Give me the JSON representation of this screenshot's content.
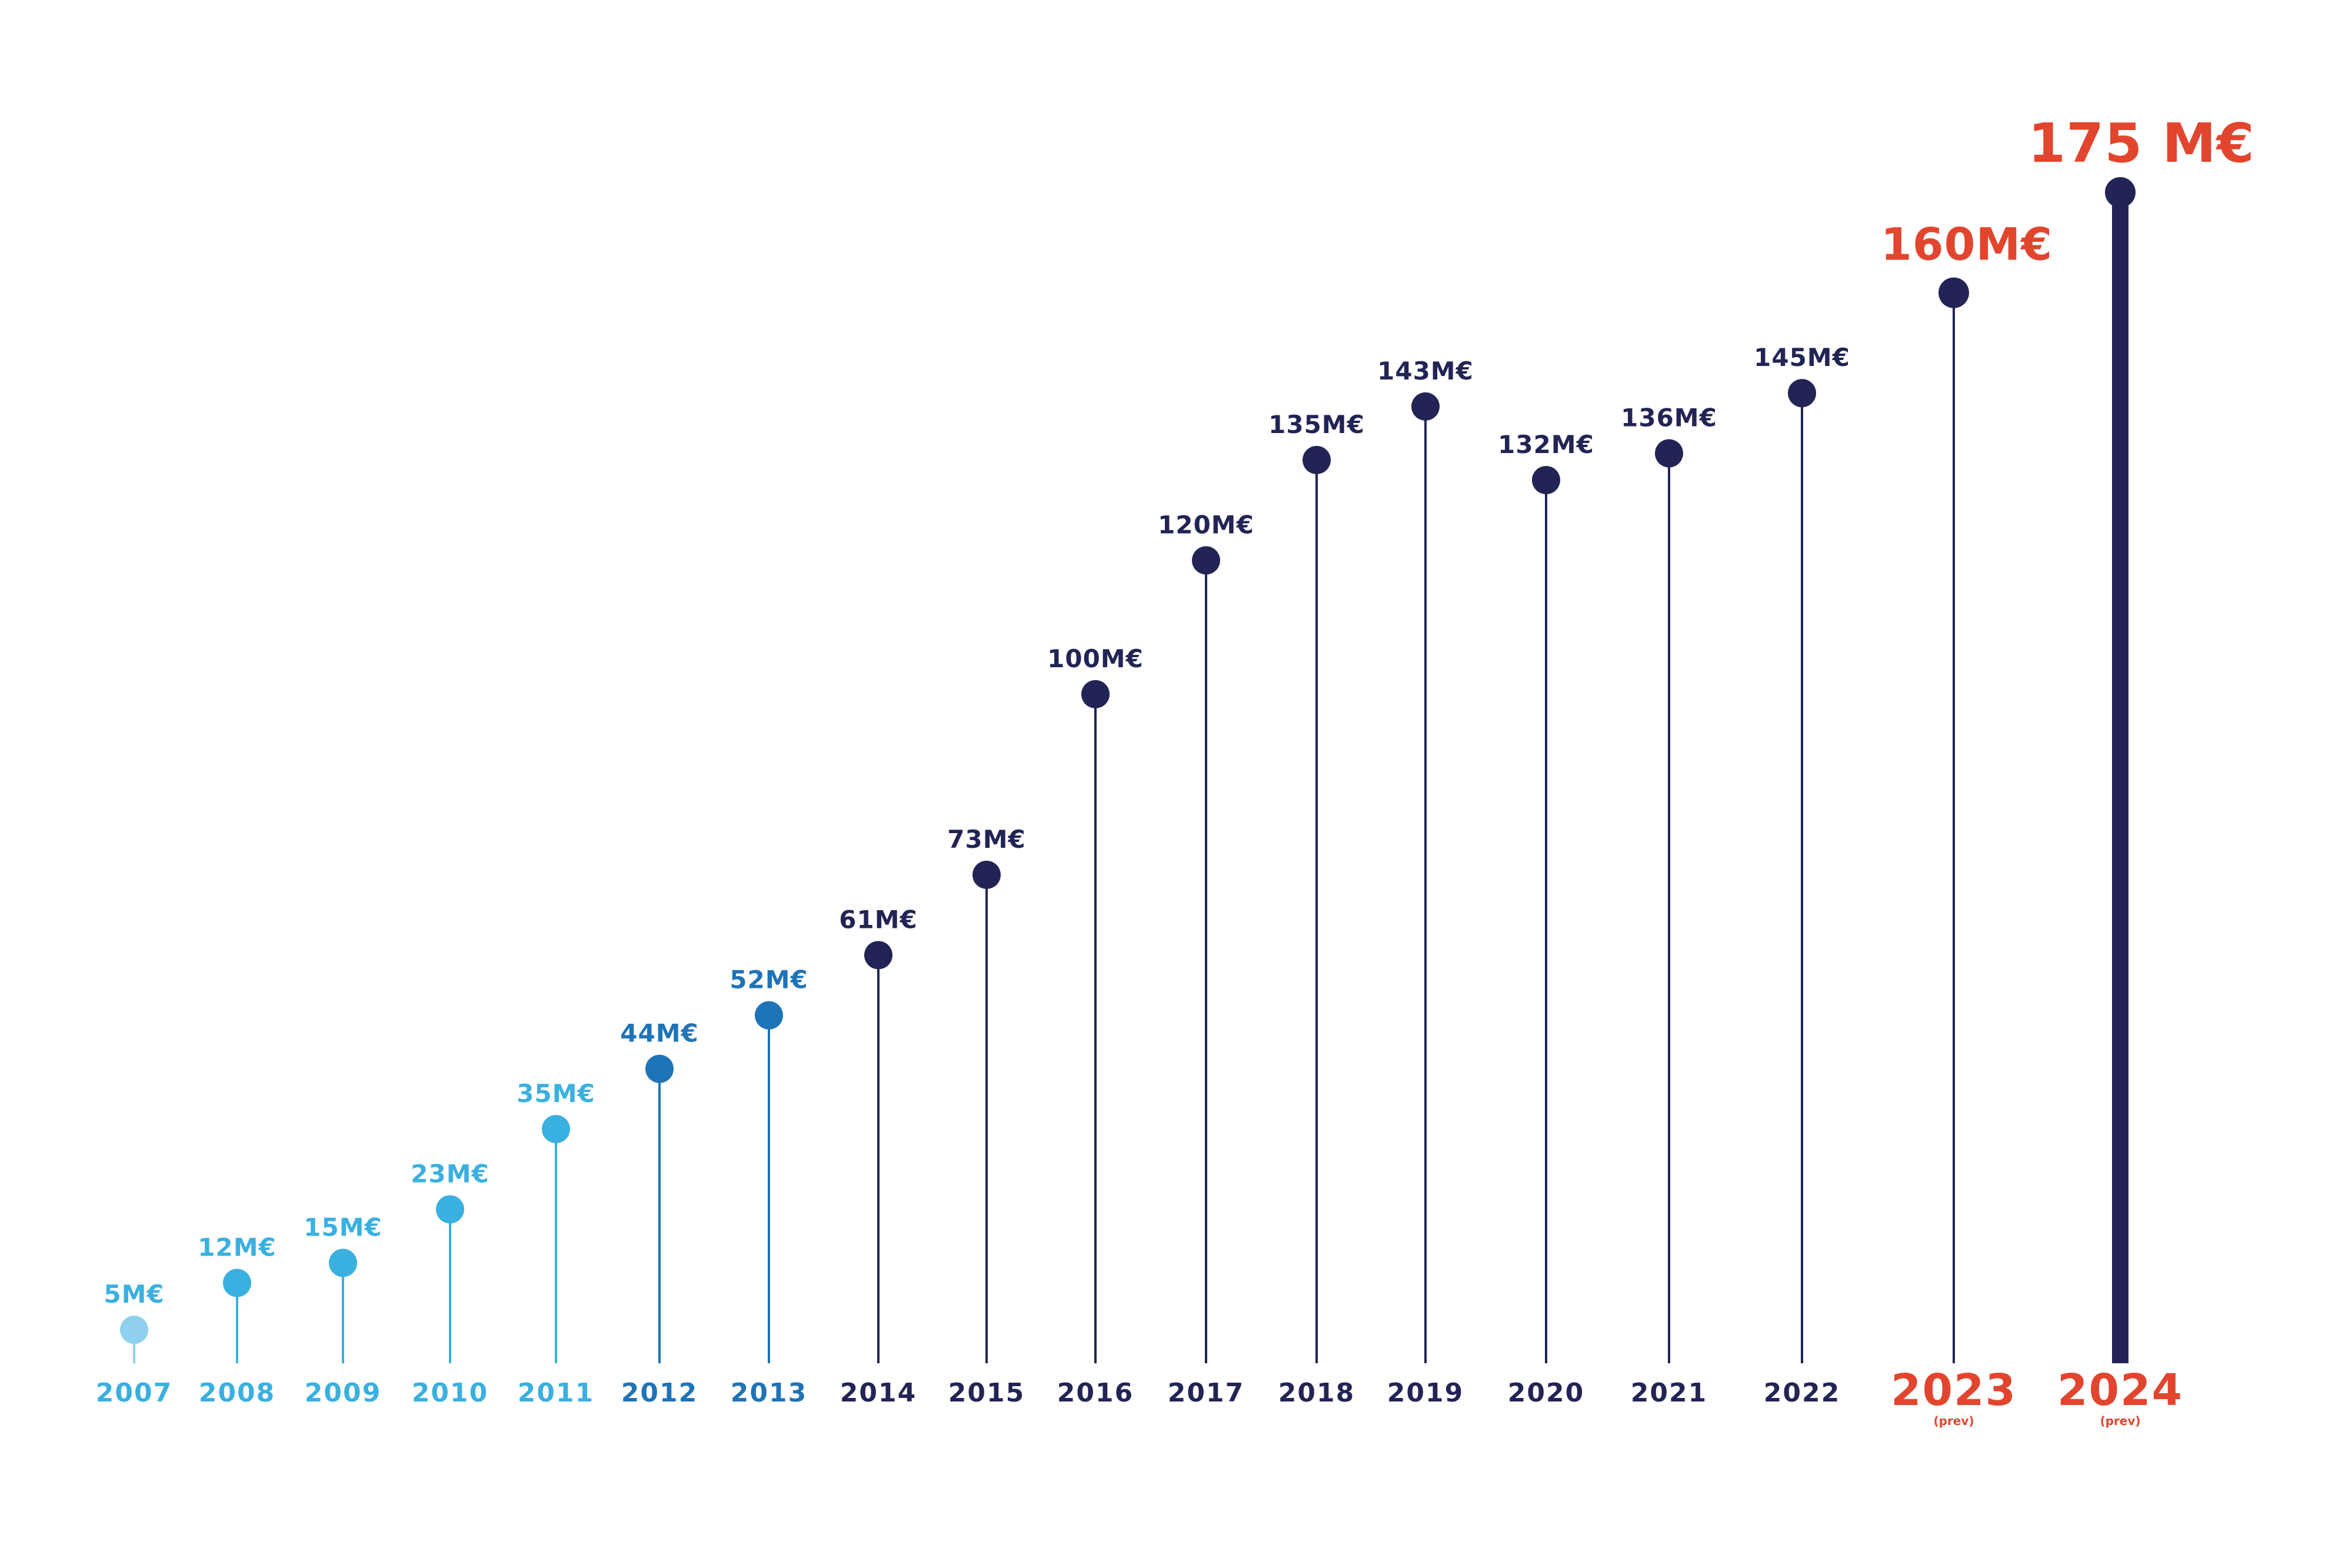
{
  "chart_data": {
    "type": "lollipop",
    "categories": [
      "2007",
      "2008",
      "2009",
      "2010",
      "2011",
      "2012",
      "2013",
      "2014",
      "2015",
      "2016",
      "2017",
      "2018",
      "2019",
      "2020",
      "2021",
      "2022",
      "2023",
      "2024"
    ],
    "values": [
      5,
      12,
      15,
      23,
      35,
      44,
      52,
      61,
      73,
      100,
      120,
      135,
      143,
      132,
      136,
      145,
      160,
      175
    ],
    "value_labels": [
      "5M€",
      "12M€",
      "15M€",
      "23M€",
      "35M€",
      "44M€",
      "52M€",
      "61M€",
      "73M€",
      "100M€",
      "120M€",
      "135M€",
      "143M€",
      "132M€",
      "136M€",
      "145M€",
      "160M€",
      "175 M€"
    ],
    "sublabels": [
      "",
      "",
      "",
      "",
      "",
      "",
      "",
      "",
      "",
      "",
      "",
      "",
      "",
      "",
      "",
      "",
      "(prev)",
      "(prev)"
    ],
    "point_colors": [
      "#8fd0ee",
      "#3ab0e0",
      "#3ab0e0",
      "#3ab0e0",
      "#3ab0e0",
      "#1f73b7",
      "#1f73b7",
      "#222455",
      "#222455",
      "#222455",
      "#222455",
      "#222455",
      "#222455",
      "#222455",
      "#222455",
      "#222455",
      "#222455",
      "#222455"
    ],
    "year_label_colors": [
      "#3ab0e0",
      "#3ab0e0",
      "#3ab0e0",
      "#3ab0e0",
      "#3ab0e0",
      "#1f73b7",
      "#1f73b7",
      "#222455",
      "#222455",
      "#222455",
      "#222455",
      "#222455",
      "#222455",
      "#222455",
      "#222455",
      "#222455",
      "#e2452e",
      "#e2452e"
    ],
    "value_label_colors": [
      "#3ab0e0",
      "#3ab0e0",
      "#3ab0e0",
      "#3ab0e0",
      "#3ab0e0",
      "#1f73b7",
      "#1f73b7",
      "#222455",
      "#222455",
      "#222455",
      "#222455",
      "#222455",
      "#222455",
      "#222455",
      "#222455",
      "#222455",
      "#e2452e",
      "#e2452e"
    ],
    "highlight": "2024",
    "forecast_years": [
      "2023",
      "2024"
    ],
    "ylim": [
      0,
      175
    ],
    "grid": false,
    "title": "",
    "xlabel": "",
    "ylabel": ""
  }
}
